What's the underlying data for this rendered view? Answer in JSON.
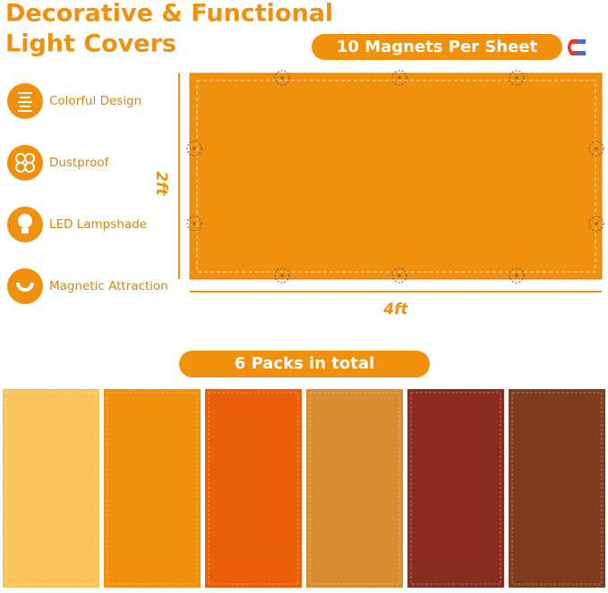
{
  "header": {
    "title_lines": [
      "Decorative & Functional",
      "Light Covers"
    ],
    "badge": "10 Magnets Per Sheet"
  },
  "features": [
    {
      "label": "Colorful Design"
    },
    {
      "label": "Dustproof"
    },
    {
      "label": "LED Lampshade"
    },
    {
      "label": "Magnetic Attraction"
    }
  ],
  "sheet": {
    "height_label": "2ft",
    "width_label": "4ft",
    "color": "#f0900c"
  },
  "packs": {
    "label": "6 Packs in total",
    "colors": [
      "#f9c35a",
      "#f0900c",
      "#ec5f0a",
      "#d78c2f",
      "#8a2b1f",
      "#7d3c1c"
    ]
  }
}
